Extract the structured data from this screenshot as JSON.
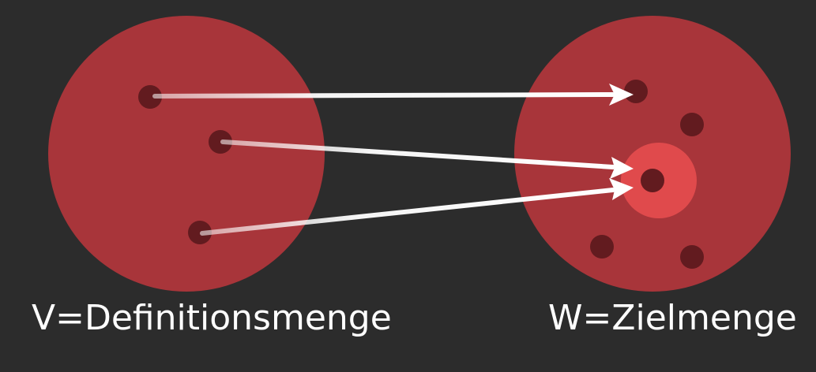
{
  "colors": {
    "background": "#2c2c2c",
    "set_fill": "#a8353a",
    "point_fill": "#621b1f",
    "highlight_fill": "#e04a4c",
    "arrow": "#ffffff",
    "label_text": "#ffffff"
  },
  "sets": {
    "domain": {
      "label": "V=Definitionsmenge",
      "point_count": 3
    },
    "codomain": {
      "label": "W=Zielmenge",
      "point_count": 5,
      "highlighted_point": "image"
    }
  },
  "mappings": [
    {
      "from": "domain-point-1",
      "to": "codomain-point-top"
    },
    {
      "from": "domain-point-2",
      "to": "codomain-point-image"
    },
    {
      "from": "domain-point-3",
      "to": "codomain-point-image"
    }
  ]
}
